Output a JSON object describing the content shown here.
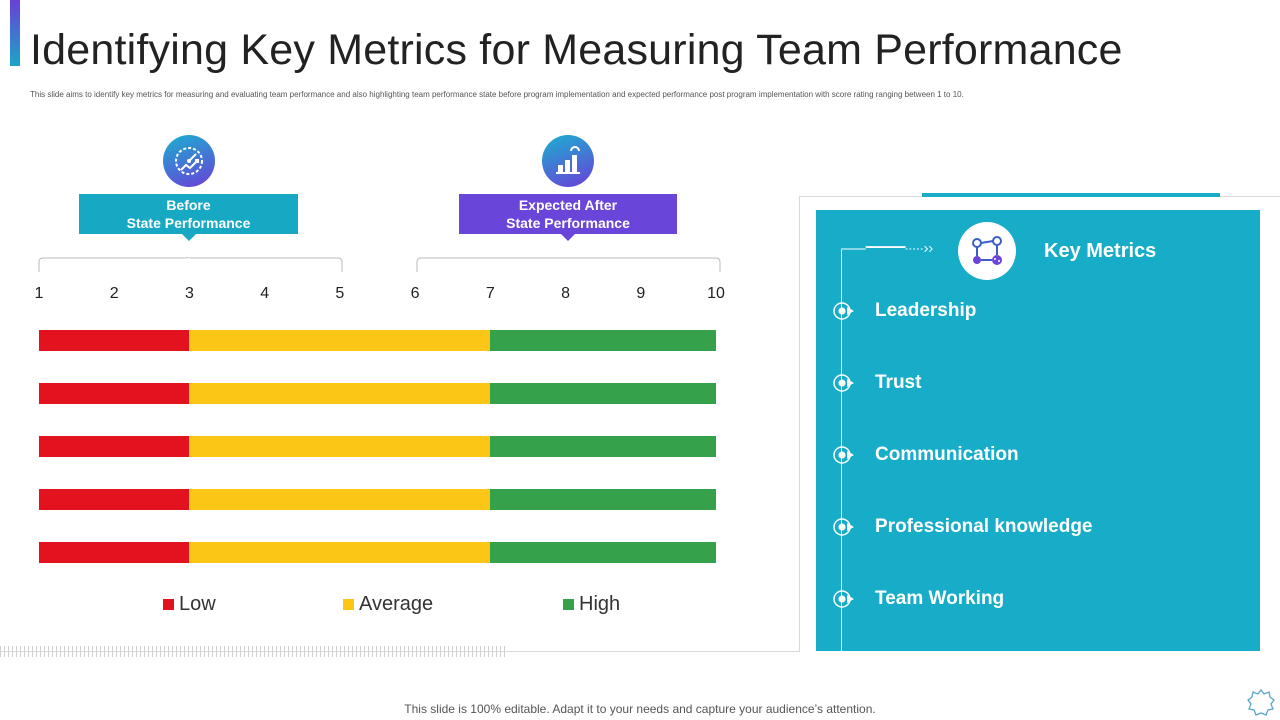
{
  "title": "Identifying Key Metrics for Measuring Team Performance",
  "subtitle": "This slide aims to identify key metrics for measuring and evaluating team performance and also highlighting team performance state before program implementation and expected performance post program implementation with score rating ranging between 1 to 10.",
  "states": {
    "before": {
      "line1": "Before",
      "line2": "State Performance",
      "icon": "speedometer-icon"
    },
    "after": {
      "line1": "Expected After",
      "line2": "State Performance",
      "icon": "bar-chart-icon"
    }
  },
  "scale": [
    "1",
    "2",
    "3",
    "4",
    "5",
    "6",
    "7",
    "8",
    "9",
    "10"
  ],
  "rating_bands": {
    "min": 1,
    "max": 10,
    "rows": 5,
    "low_end": 3,
    "average_end": 7,
    "colors": {
      "low": "#e2131e",
      "average": "#fcc616",
      "high": "#35a14a"
    }
  },
  "legend": {
    "low": "Low",
    "average": "Average",
    "high": "High"
  },
  "key_metrics": {
    "title": "Key Metrics",
    "items": [
      "Leadership",
      "Trust",
      "Communication",
      "Professional knowledge",
      "Team Working"
    ],
    "panel_color": "#17adc8"
  },
  "footer": "This slide is 100% editable. Adapt it to your needs and capture your audience’s attention."
}
